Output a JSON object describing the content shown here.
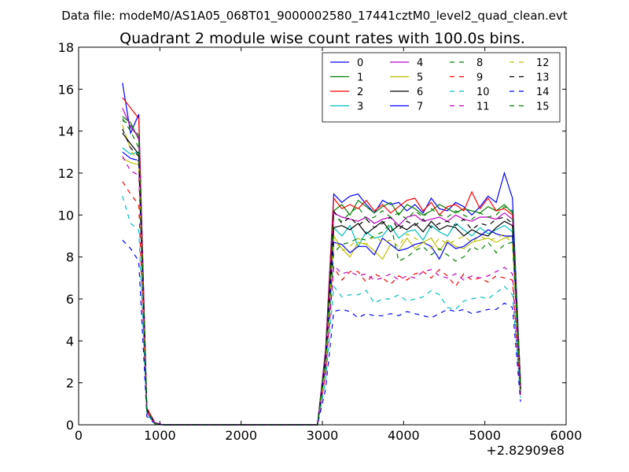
{
  "suptitle": "Data file: modeM0/AS1A05_068T01_9000002580_17441cztM0_level2_quad_clean.evt",
  "chart_data": {
    "type": "line",
    "title": "Quadrant 2 module wise count rates with 100.0s bins.",
    "xlabel": "",
    "ylabel": "",
    "x_offset_label": "+2.82909e8",
    "xlim": [
      0,
      6000
    ],
    "ylim": [
      0,
      18
    ],
    "xticks": [
      0,
      1000,
      2000,
      3000,
      4000,
      5000,
      6000
    ],
    "yticks": [
      0,
      2,
      4,
      6,
      8,
      10,
      12,
      14,
      16,
      18
    ],
    "grid": false,
    "legend_position": "top-right",
    "legend_columns": 4,
    "x": [
      540,
      640,
      740,
      840,
      940,
      1040,
      1140,
      1240,
      1340,
      1440,
      1540,
      1640,
      1740,
      1840,
      1940,
      2040,
      2140,
      2240,
      2340,
      2440,
      2540,
      2640,
      2740,
      2840,
      2940,
      3040,
      3140,
      3240,
      3340,
      3440,
      3540,
      3640,
      3740,
      3840,
      3940,
      4040,
      4140,
      4240,
      4340,
      4440,
      4540,
      4640,
      4740,
      4840,
      4940,
      5040,
      5140,
      5240,
      5340,
      5440
    ],
    "series": [
      {
        "name": "0",
        "color": "#0000ff",
        "dash": "solid",
        "values": [
          16.3,
          13.9,
          14.8,
          0.8,
          0.1,
          0,
          0,
          0,
          0,
          0,
          0,
          0,
          0,
          0,
          0,
          0,
          0,
          0,
          0,
          0,
          0,
          0,
          0,
          0,
          0,
          3.6,
          11.0,
          10.6,
          10.9,
          11.0,
          10.5,
          10.1,
          10.7,
          10.5,
          10.6,
          10.2,
          10.5,
          10.1,
          10.8,
          10.3,
          10.2,
          10.6,
          10.4,
          10.0,
          10.4,
          10.9,
          10.6,
          12.0,
          10.8,
          1.9
        ]
      },
      {
        "name": "1",
        "color": "#008000",
        "dash": "solid",
        "values": [
          14.7,
          14.4,
          13.6,
          0.7,
          0.05,
          0,
          0,
          0,
          0,
          0,
          0,
          0,
          0,
          0,
          0,
          0,
          0,
          0,
          0,
          0,
          0,
          0,
          0,
          0,
          0,
          3.3,
          10.2,
          10.5,
          10.0,
          10.7,
          10.4,
          10.1,
          10.4,
          10.6,
          10.0,
          10.5,
          10.3,
          10.0,
          10.2,
          10.5,
          10.3,
          10.1,
          10.3,
          10.2,
          10.1,
          10.4,
          10.2,
          10.5,
          10.1,
          2.0
        ]
      },
      {
        "name": "2",
        "color": "#ff0000",
        "dash": "solid",
        "values": [
          15.6,
          15.1,
          14.6,
          0.8,
          0.1,
          0,
          0,
          0,
          0,
          0,
          0,
          0,
          0,
          0,
          0,
          0,
          0,
          0,
          0,
          0,
          0,
          0,
          0,
          0,
          0,
          3.5,
          10.8,
          10.3,
          10.5,
          10.3,
          10.7,
          10.2,
          10.5,
          10.1,
          10.4,
          10.7,
          10.8,
          10.2,
          10.6,
          10.0,
          10.4,
          10.5,
          10.2,
          11.1,
          10.3,
          10.8,
          10.2,
          10.3,
          10.0,
          1.9
        ]
      },
      {
        "name": "3",
        "color": "#00bfbf",
        "dash": "solid",
        "values": [
          13.2,
          12.9,
          13.0,
          0.7,
          0.05,
          0,
          0,
          0,
          0,
          0,
          0,
          0,
          0,
          0,
          0,
          0,
          0,
          0,
          0,
          0,
          0,
          0,
          0,
          0,
          0,
          3.0,
          9.4,
          9.0,
          9.5,
          8.5,
          9.2,
          8.9,
          9.0,
          9.5,
          8.9,
          9.2,
          9.3,
          8.8,
          9.5,
          9.2,
          9.0,
          9.6,
          9.3,
          9.0,
          9.4,
          9.1,
          9.3,
          9.5,
          9.2,
          1.7
        ]
      },
      {
        "name": "4",
        "color": "#bf00bf",
        "dash": "solid",
        "values": [
          15.1,
          14.2,
          13.7,
          0.7,
          0.1,
          0,
          0,
          0,
          0,
          0,
          0,
          0,
          0,
          0,
          0,
          0,
          0,
          0,
          0,
          0,
          0,
          0,
          0,
          0,
          0,
          3.4,
          10.1,
          9.9,
          9.8,
          9.7,
          9.9,
          9.6,
          9.8,
          9.9,
          9.5,
          9.9,
          10.0,
          9.7,
          9.8,
          9.9,
          9.7,
          10.0,
          9.8,
          9.7,
          9.9,
          9.9,
          9.8,
          10.1,
          9.8,
          1.8
        ]
      },
      {
        "name": "5",
        "color": "#bfbf00",
        "dash": "solid",
        "values": [
          12.7,
          12.5,
          12.4,
          0.6,
          0.05,
          0,
          0,
          0,
          0,
          0,
          0,
          0,
          0,
          0,
          0,
          0,
          0,
          0,
          0,
          0,
          0,
          0,
          0,
          0,
          0,
          2.9,
          9.0,
          8.4,
          8.0,
          8.7,
          8.6,
          8.3,
          7.9,
          8.6,
          8.3,
          8.9,
          8.4,
          8.7,
          8.9,
          8.3,
          8.8,
          8.5,
          8.4,
          8.7,
          8.8,
          8.9,
          8.7,
          8.9,
          9.0,
          1.6
        ]
      },
      {
        "name": "6",
        "color": "#000000",
        "dash": "solid",
        "values": [
          13.9,
          13.4,
          12.9,
          0.7,
          0.05,
          0,
          0,
          0,
          0,
          0,
          0,
          0,
          0,
          0,
          0,
          0,
          0,
          0,
          0,
          0,
          0,
          0,
          0,
          0,
          0,
          3.1,
          9.4,
          9.5,
          9.3,
          9.6,
          9.1,
          9.4,
          9.7,
          9.2,
          9.5,
          9.3,
          9.6,
          9.2,
          9.7,
          9.3,
          9.5,
          9.4,
          9.0,
          9.3,
          9.1,
          9.0,
          9.4,
          9.7,
          9.5,
          1.7
        ]
      },
      {
        "name": "7",
        "color": "#0000ff",
        "dash": "solid",
        "values": [
          13.0,
          12.7,
          12.6,
          0.6,
          0.05,
          0,
          0,
          0,
          0,
          0,
          0,
          0,
          0,
          0,
          0,
          0,
          0,
          0,
          0,
          0,
          0,
          0,
          0,
          0,
          0,
          2.9,
          8.7,
          8.6,
          8.2,
          8.5,
          8.5,
          8.1,
          8.9,
          8.6,
          8.3,
          8.4,
          8.6,
          8.7,
          8.5,
          7.9,
          8.7,
          8.4,
          8.5,
          8.8,
          9.0,
          9.3,
          9.1,
          9.0,
          9.0,
          1.6
        ]
      },
      {
        "name": "8",
        "color": "#008000",
        "dash": "dashed",
        "values": [
          14.6,
          14.0,
          13.2,
          0.7,
          0.05,
          0,
          0,
          0,
          0,
          0,
          0,
          0,
          0,
          0,
          0,
          0,
          0,
          0,
          0,
          0,
          0,
          0,
          0,
          0,
          0,
          2.7,
          8.2,
          8.6,
          8.7,
          8.9,
          8.8,
          9.0,
          9.2,
          9.6,
          7.8,
          8.0,
          8.3,
          8.5,
          8.1,
          8.4,
          8.1,
          7.8,
          8.0,
          8.5,
          8.3,
          8.7,
          8.2,
          8.6,
          8.7,
          1.5
        ]
      },
      {
        "name": "9",
        "color": "#ff0000",
        "dash": "dashed",
        "values": [
          11.6,
          11.0,
          10.5,
          0.6,
          0.05,
          0,
          0,
          0,
          0,
          0,
          0,
          0,
          0,
          0,
          0,
          0,
          0,
          0,
          0,
          0,
          0,
          0,
          0,
          0,
          0,
          2.4,
          7.5,
          6.9,
          7.3,
          7.3,
          6.8,
          7.2,
          7.0,
          6.7,
          7.1,
          6.9,
          7.2,
          7.3,
          7.0,
          7.4,
          7.1,
          6.6,
          7.2,
          6.9,
          7.0,
          6.8,
          7.1,
          7.0,
          6.9,
          1.4
        ]
      },
      {
        "name": "10",
        "color": "#00bfbf",
        "dash": "dashed",
        "values": [
          10.9,
          9.6,
          9.3,
          0.5,
          0.05,
          0,
          0,
          0,
          0,
          0,
          0,
          0,
          0,
          0,
          0,
          0,
          0,
          0,
          0,
          0,
          0,
          0,
          0,
          0,
          0,
          2.1,
          6.6,
          6.1,
          6.2,
          6.2,
          6.4,
          5.8,
          6.0,
          6.0,
          6.2,
          5.9,
          6.0,
          6.1,
          6.4,
          6.2,
          5.6,
          5.5,
          5.9,
          6.0,
          6.1,
          6.0,
          6.3,
          6.6,
          6.2,
          1.3
        ]
      },
      {
        "name": "11",
        "color": "#bf00bf",
        "dash": "dashed",
        "values": [
          12.8,
          12.1,
          11.9,
          0.6,
          0.05,
          0,
          0,
          0,
          0,
          0,
          0,
          0,
          0,
          0,
          0,
          0,
          0,
          0,
          0,
          0,
          0,
          0,
          0,
          0,
          0,
          2.6,
          7.6,
          7.2,
          7.3,
          7.1,
          7.2,
          6.9,
          7.0,
          7.2,
          6.9,
          7.1,
          7.0,
          7.3,
          7.4,
          7.1,
          7.0,
          7.2,
          6.9,
          7.1,
          7.0,
          7.1,
          7.3,
          7.5,
          7.2,
          1.5
        ]
      },
      {
        "name": "12",
        "color": "#bfbf00",
        "dash": "dashed",
        "values": [
          14.3,
          13.1,
          12.5,
          0.7,
          0.05,
          0,
          0,
          0,
          0,
          0,
          0,
          0,
          0,
          0,
          0,
          0,
          0,
          0,
          0,
          0,
          0,
          0,
          0,
          0,
          0,
          2.8,
          8.9,
          8.3,
          8.5,
          8.9,
          8.6,
          9.0,
          8.7,
          8.8,
          8.5,
          9.1,
          8.9,
          8.7,
          8.4,
          8.9,
          8.6,
          8.8,
          9.0,
          8.7,
          9.0,
          8.8,
          8.9,
          9.1,
          8.6,
          1.6
        ]
      },
      {
        "name": "13",
        "color": "#000000",
        "dash": "dashed",
        "values": [
          14.1,
          13.2,
          12.8,
          0.7,
          0.05,
          0,
          0,
          0,
          0,
          0,
          0,
          0,
          0,
          0,
          0,
          0,
          0,
          0,
          0,
          0,
          0,
          0,
          0,
          0,
          0,
          3.2,
          10.2,
          9.6,
          9.9,
          9.5,
          9.8,
          9.4,
          9.6,
          9.9,
          9.3,
          9.7,
          9.5,
          9.8,
          9.4,
          9.6,
          9.7,
          9.5,
          9.8,
          9.3,
          9.6,
          9.5,
          9.8,
          9.9,
          9.6,
          1.7
        ]
      },
      {
        "name": "14",
        "color": "#0000ff",
        "dash": "dashed",
        "values": [
          8.8,
          8.4,
          7.8,
          0.4,
          0.05,
          0,
          0,
          0,
          0,
          0,
          0,
          0,
          0,
          0,
          0,
          0,
          0,
          0,
          0,
          0,
          0,
          0,
          0,
          0,
          0,
          1.7,
          5.4,
          5.5,
          5.4,
          5.1,
          5.3,
          5.2,
          5.2,
          5.3,
          5.2,
          5.4,
          5.3,
          5.2,
          5.1,
          5.3,
          5.5,
          5.4,
          5.5,
          5.3,
          5.4,
          5.5,
          5.5,
          5.8,
          5.6,
          1.1
        ]
      },
      {
        "name": "15",
        "color": "#008000",
        "dash": "dashed",
        "values": [
          14.5,
          14.3,
          13.8,
          0.7,
          0.05,
          0,
          0,
          0,
          0,
          0,
          0,
          0,
          0,
          0,
          0,
          0,
          0,
          0,
          0,
          0,
          0,
          0,
          0,
          0,
          0,
          3.3,
          9.9,
          9.7,
          10.1,
          10.4,
          9.8,
          9.9,
          10.2,
          9.9,
          10.1,
          9.8,
          10.2,
          9.9,
          10.3,
          10.0,
          9.9,
          10.2,
          10.0,
          9.8,
          10.1,
          9.9,
          10.0,
          10.4,
          10.2,
          1.8
        ]
      }
    ]
  }
}
